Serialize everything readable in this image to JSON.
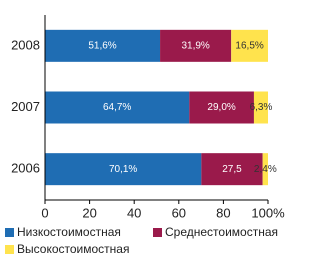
{
  "chart_data": {
    "type": "stacked_barh",
    "categories": [
      "2008",
      "2007",
      "2006"
    ],
    "series": [
      {
        "name": "Низкостоимостная",
        "color": "#1f6db3",
        "values": [
          51.6,
          64.7,
          70.1
        ],
        "value_labels": [
          "51,6%",
          "64,7%",
          "70,1%"
        ]
      },
      {
        "name": "Среднестоимостная",
        "color": "#9a1a4b",
        "values": [
          31.9,
          29.0,
          27.5
        ],
        "value_labels": [
          "31,9%",
          "29,0%",
          "27,5"
        ]
      },
      {
        "name": "Высокостоимостная",
        "color": "#ffe34d",
        "values": [
          16.5,
          6.3,
          2.4
        ],
        "value_labels": [
          "16,5%",
          "6,3%",
          "2,4%"
        ]
      }
    ],
    "xlim": [
      0,
      100
    ],
    "xticks": [
      0,
      20,
      40,
      60,
      80,
      {
        "value": 100,
        "label": "100%"
      }
    ]
  }
}
